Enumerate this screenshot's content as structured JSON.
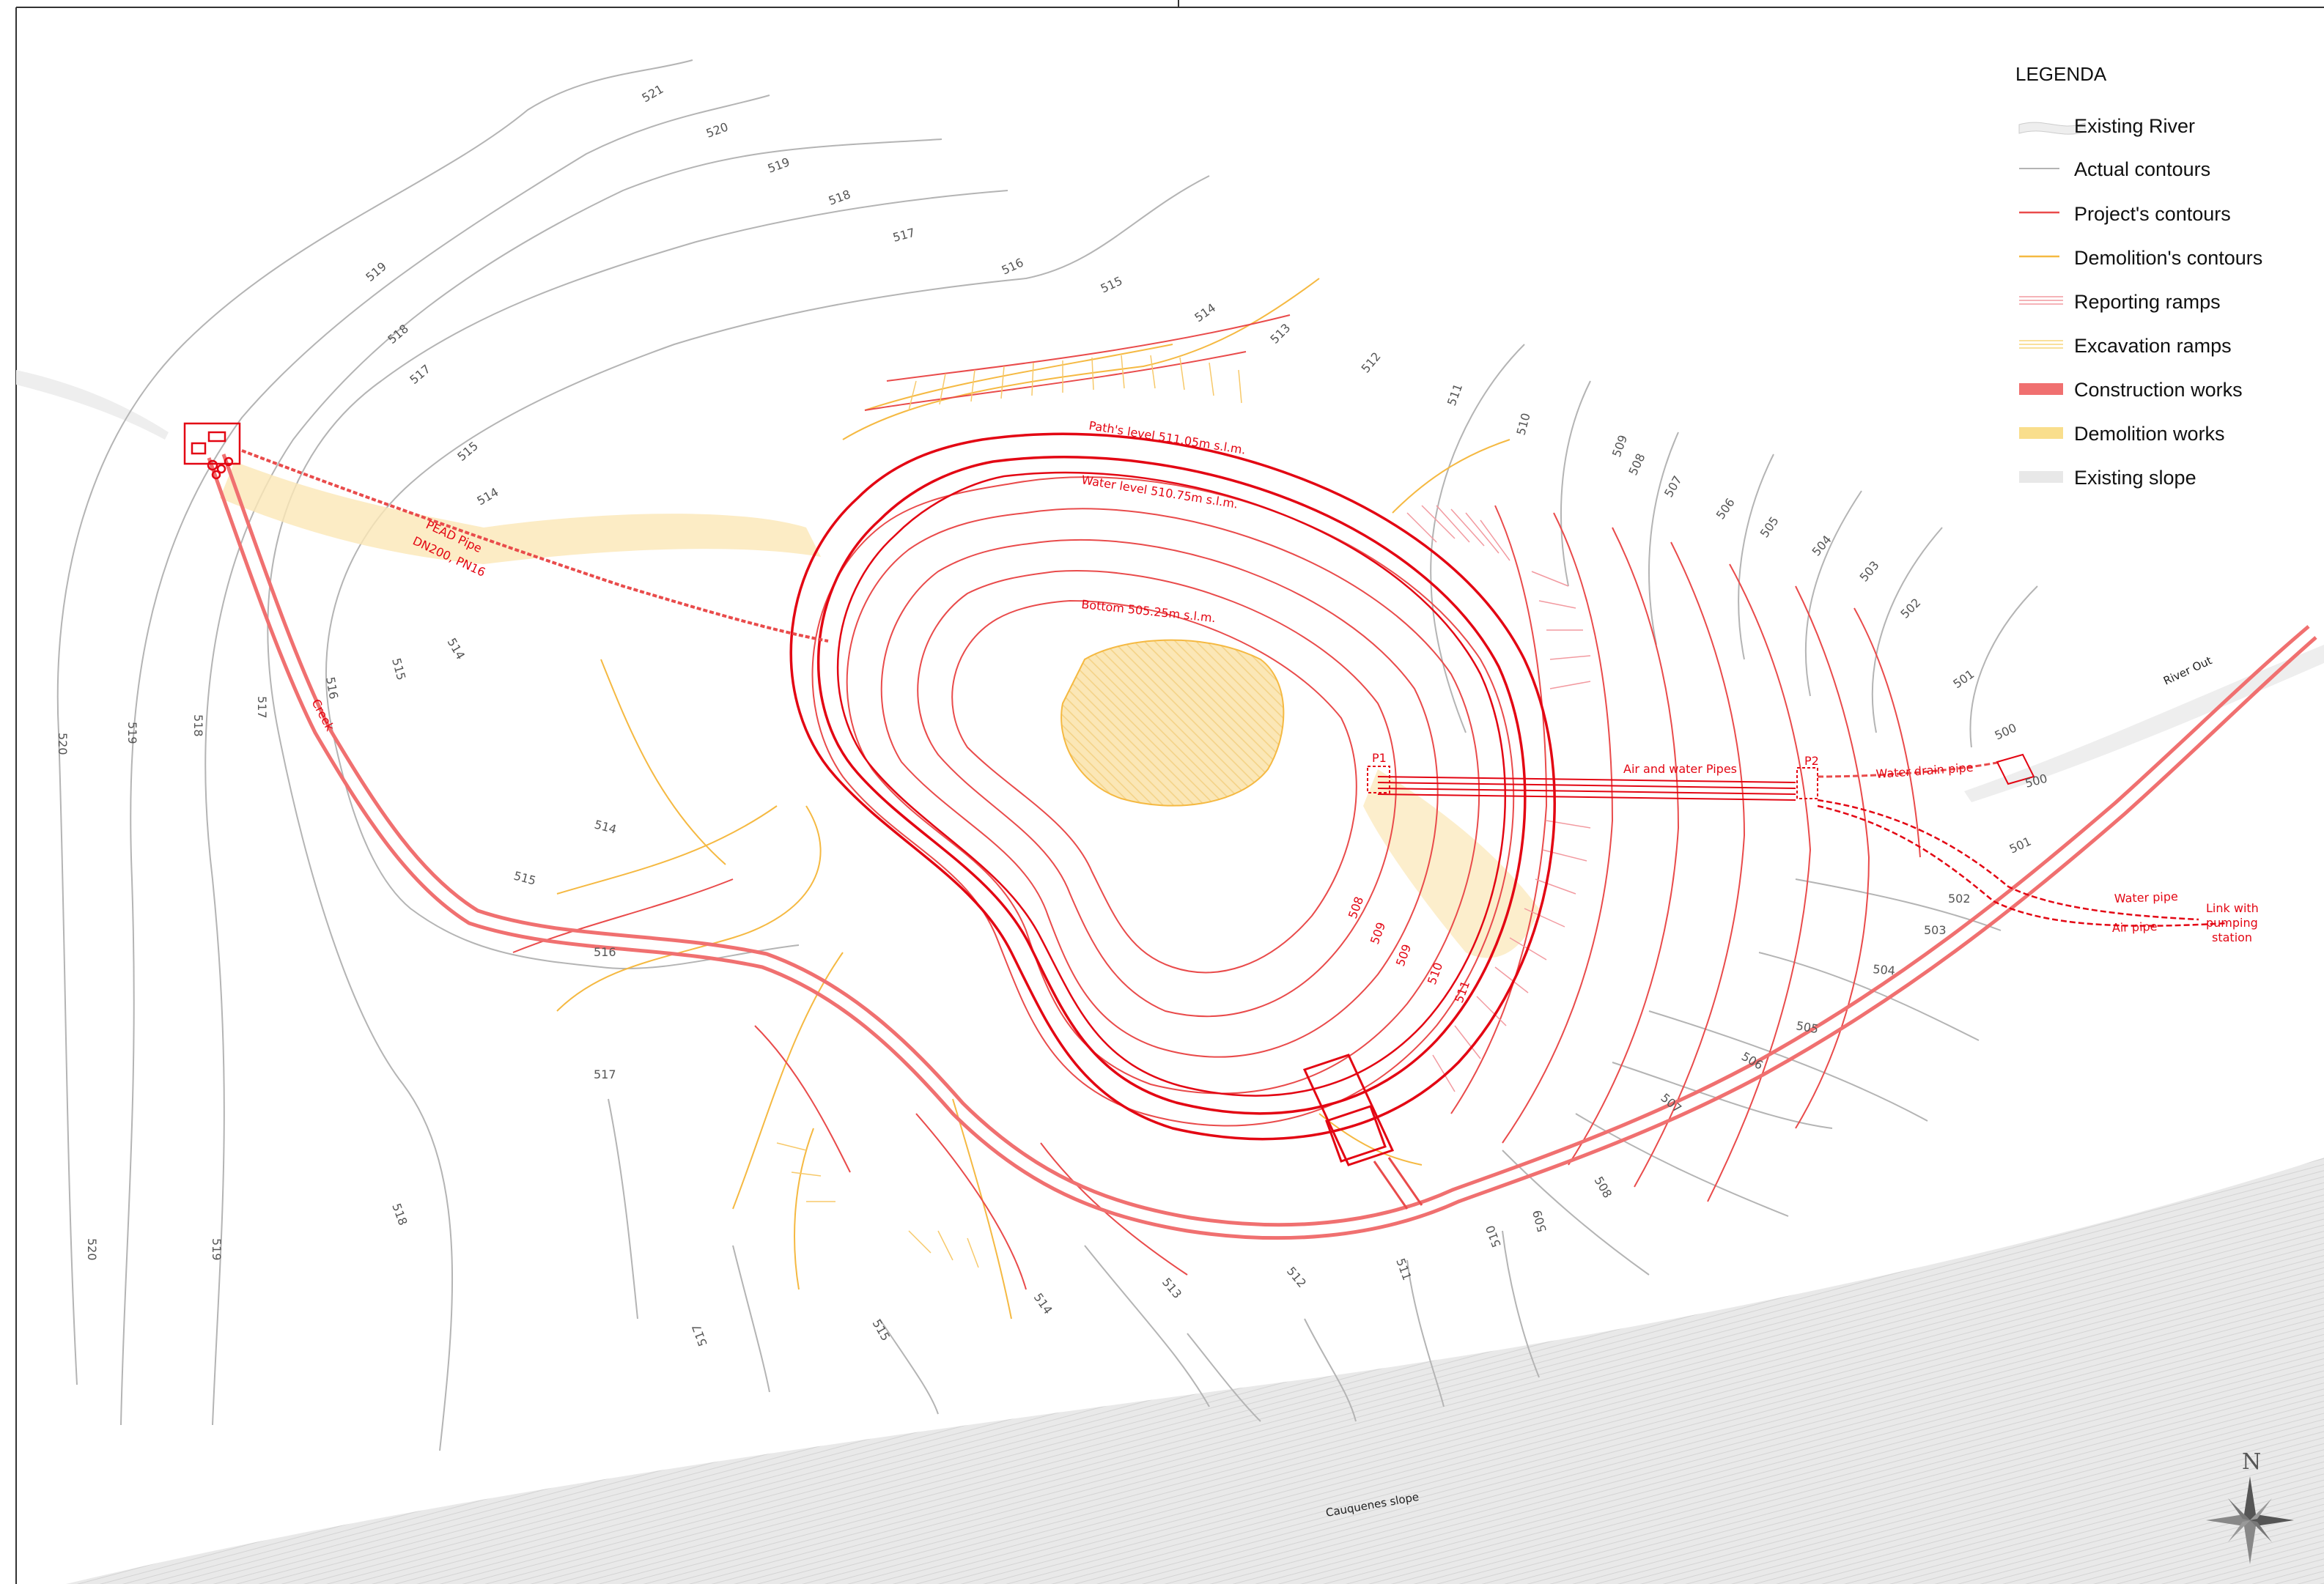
{
  "legend": {
    "title": "LEGENDA",
    "items": [
      {
        "label": "Existing River",
        "color": "#eeeeee",
        "kind": "river"
      },
      {
        "label": "Actual contours",
        "color": "#b4b4b4",
        "kind": "line"
      },
      {
        "label": "Project's contours",
        "color": "#e94b4b",
        "kind": "line"
      },
      {
        "label": "Demolition's contours",
        "color": "#f5b942",
        "kind": "line"
      },
      {
        "label": "Reporting ramps",
        "color": "#f29aa0",
        "kind": "hatch"
      },
      {
        "label": "Excavation ramps",
        "color": "#f7d67a",
        "kind": "hatch"
      },
      {
        "label": "Construction works",
        "color": "#f07070",
        "kind": "fill"
      },
      {
        "label": "Demolition works",
        "color": "#f9de8c",
        "kind": "fill"
      },
      {
        "label": "Existing slope",
        "color": "#e8e8e8",
        "kind": "fill"
      }
    ]
  },
  "annotations": {
    "path_level": "Path's level 511.05m s.l.m.",
    "water_level": "Water level 510.75m s.l.m.",
    "bottom": "Bottom 505.25m s.l.m.",
    "pead_pipe_1": "PEAD Pipe",
    "pead_pipe_2": "DN200, PN16",
    "creek": "Creek",
    "air_water_pipes": "Air and water Pipes",
    "p1": "P1",
    "p2": "P2",
    "water_drain_pipe": "Water drain pipe",
    "water_pipe": "Water pipe",
    "air_pipe": "Air pipe",
    "link_1": "Link with",
    "link_2": "pumping",
    "link_3": "station",
    "river_out": "River Out",
    "cauquenes_slope": "Cauquenes slope",
    "north": "N"
  },
  "contour_labels": {
    "grey": [
      "521",
      "520",
      "519",
      "518",
      "517",
      "516",
      "515",
      "514",
      "513",
      "512",
      "511",
      "510",
      "509",
      "508",
      "507",
      "506",
      "505",
      "504",
      "503",
      "502",
      "501",
      "500"
    ],
    "red_inner": [
      "508",
      "509",
      "509",
      "510",
      "511"
    ]
  },
  "colors": {
    "actual": "#b4b4b4",
    "project": "#e94b4b",
    "project_strong": "#e30613",
    "demolition": "#f5b942",
    "demolition_fill": "#f9e3a8",
    "slope": "#e6e6e6",
    "river": "#f0f0f0"
  }
}
